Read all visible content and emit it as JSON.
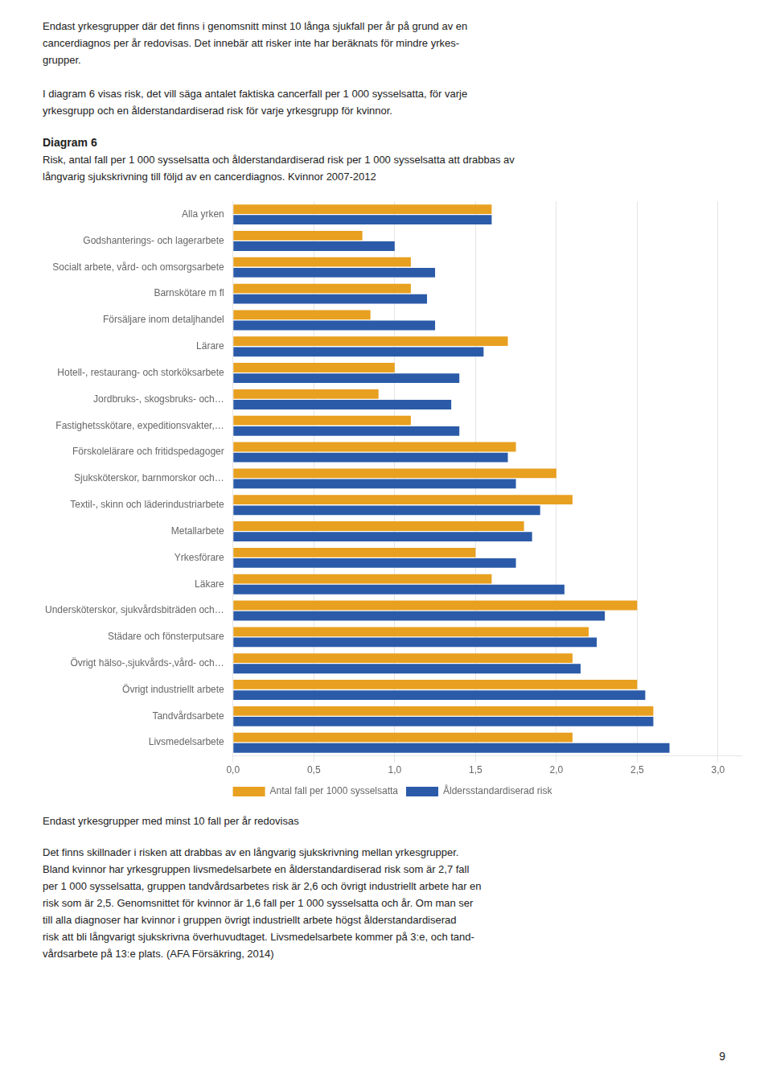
{
  "page_text_above": [
    "Endast yrkesgrupper där det finns i genomsnitt minst 10 långa sjukfall per år på grund av en",
    "cancerdiagnos per år redovisas. Det innebär att risker inte har beräknats för mindre yrkes-",
    "grupper.",
    "I diagram 6 visas risk, det vill säga antalet faktiska cancerfall per 1 000 sysselsatta, för varje",
    "yrkesgrupp och en ålderstandardiserad risk för varje yrkesgrupp för kvinnor."
  ],
  "chart_data": {
    "type": "bar",
    "orientation": "horizontal",
    "title": "Diagram 6",
    "subtitle": [
      "Risk, antal fall per 1 000 sysselsatta och ålderstandardiserad risk per 1 000 sysselsatta att drabbas av",
      "långvarig sjukskrivning till följd av en cancerdiagnos. Kvinnor 2007-2012"
    ],
    "categories": [
      "Alla yrken",
      "Godshanterings- och lagerarbete",
      "Socialt arbete, vård- och omsorgsarbete",
      "Barnskötare m fl",
      "Försäljare inom detaljhandel",
      "Lärare",
      "Hotell-, restaurang- och storköksarbete",
      "Jordbruks-, skogsbruks- och…",
      "Fastighetsskötare, expeditionsvakter,…",
      "Förskolelärare och fritidspedagoger",
      "Sjuksköterskor, barnmorskor och…",
      "Textil-, skinn och läderindustriarbete",
      "Metallarbete",
      "Yrkesförare",
      "Läkare",
      "Undersköterskor, sjukvårdsbiträden och…",
      "Städare och fönsterputsare",
      "Övrigt hälso-,sjukvårds-,vård- och…",
      "Övrigt industriellt arbete",
      "Tandvårdsarbete",
      "Livsmedelsarbete"
    ],
    "series": [
      {
        "name": "Antal fall per 1000 sysselsatta",
        "color": "#E8A020",
        "values": [
          1.6,
          0.8,
          1.1,
          1.1,
          0.85,
          1.7,
          1.0,
          0.9,
          1.1,
          1.75,
          2.0,
          2.1,
          1.8,
          1.5,
          1.6,
          2.5,
          2.2,
          2.1,
          2.5,
          2.6,
          2.1
        ]
      },
      {
        "name": "Åldersstandardiserad risk",
        "color": "#2B5BA8",
        "values": [
          1.6,
          1.0,
          1.25,
          1.2,
          1.25,
          1.55,
          1.4,
          1.35,
          1.4,
          1.7,
          1.75,
          1.9,
          1.85,
          1.75,
          2.05,
          2.3,
          2.25,
          2.15,
          2.55,
          2.6,
          2.7
        ]
      }
    ],
    "xlim": [
      0.0,
      3.15
    ],
    "xticks": [
      {
        "value": 0.0,
        "label": "0,0"
      },
      {
        "value": 0.5,
        "label": "0,5"
      },
      {
        "value": 1.0,
        "label": "1,0"
      },
      {
        "value": 1.5,
        "label": "1,5"
      },
      {
        "value": 2.0,
        "label": "2,0"
      },
      {
        "value": 2.5,
        "label": "2,5"
      },
      {
        "value": 3.0,
        "label": "3,0"
      }
    ],
    "grid": true,
    "legend": "bottom",
    "note": "Endast yrkesgrupper med minst 10 fall per år redovisas"
  },
  "page_text_below": [
    "Det finns skillnader i risken att drabbas av en långvarig sjukskrivning mellan yrkesgrupper.",
    "Bland kvinnor har yrkesgruppen livsmedelsarbete en ålderstandardiserad risk som är 2,7 fall",
    "per 1 000 sysselsatta, gruppen tandvårdsarbetes risk är 2,6 och övrigt industriellt arbete har en",
    "risk som är 2,5. Genomsnittet för kvinnor är 1,6 fall per 1 000 sysselsatta och år. Om man ser",
    "till alla diagnoser har kvinnor i gruppen övrigt industriellt arbete högst ålderstandardiserad",
    "risk att bli långvarigt sjukskrivna överhuvudtaget. Livsmedelsarbete kommer på 3:e, och tand-",
    "vårdsarbete på 13:e plats. (AFA Försäkring, 2014)"
  ],
  "page_number": "9"
}
